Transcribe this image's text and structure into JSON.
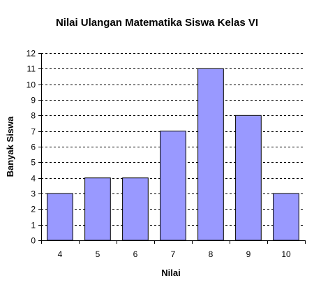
{
  "chart_data": {
    "type": "bar",
    "title": "Nilai Ulangan Matematika Siswa Kelas VI",
    "xlabel": "Nilai",
    "ylabel": "Banyak Siswa",
    "categories": [
      "4",
      "5",
      "6",
      "7",
      "8",
      "9",
      "10"
    ],
    "values": [
      3,
      4,
      4,
      7,
      11,
      8,
      3
    ],
    "ylim": [
      0,
      12
    ],
    "yticks": [
      "0",
      "1",
      "2",
      "3",
      "4",
      "5",
      "6",
      "7",
      "8",
      "9",
      "10",
      "11",
      "12"
    ],
    "grid": true,
    "grid_style": "dashed",
    "legend": "none",
    "colors": {
      "bar_fill": "#9999ff",
      "bar_stroke": "#000000",
      "grid": "#000000",
      "axis": "#000000"
    }
  }
}
